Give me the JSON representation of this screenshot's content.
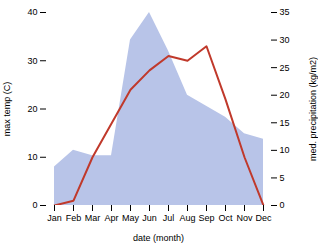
{
  "chart_data": {
    "type": "line",
    "categories": [
      "Jan",
      "Feb",
      "Mar",
      "Apr",
      "May",
      "Jun",
      "Jul",
      "Aug",
      "Sep",
      "Oct",
      "Nov",
      "Dec"
    ],
    "series": [
      {
        "type": "area",
        "axis": "y2",
        "color": "#b8c4e8",
        "values": [
          7,
          10,
          9,
          9,
          30,
          35,
          28,
          20,
          18,
          16,
          13,
          12
        ]
      },
      {
        "type": "line",
        "color": "#c0392b",
        "values": [
          0,
          1,
          10,
          17,
          24,
          28,
          31,
          30,
          33,
          22,
          10,
          0
        ]
      }
    ],
    "xlabel": "date (month)",
    "ylabel": "max temp (C)",
    "y2label": "med. precipitation (kg/m2)",
    "ylim": [
      0,
      40
    ],
    "yticks": [
      0,
      10,
      20,
      30,
      40
    ],
    "y2lim": [
      0,
      35
    ],
    "y2ticks": [
      0,
      5,
      10,
      15,
      20,
      25,
      30,
      35
    ],
    "grid": false
  }
}
